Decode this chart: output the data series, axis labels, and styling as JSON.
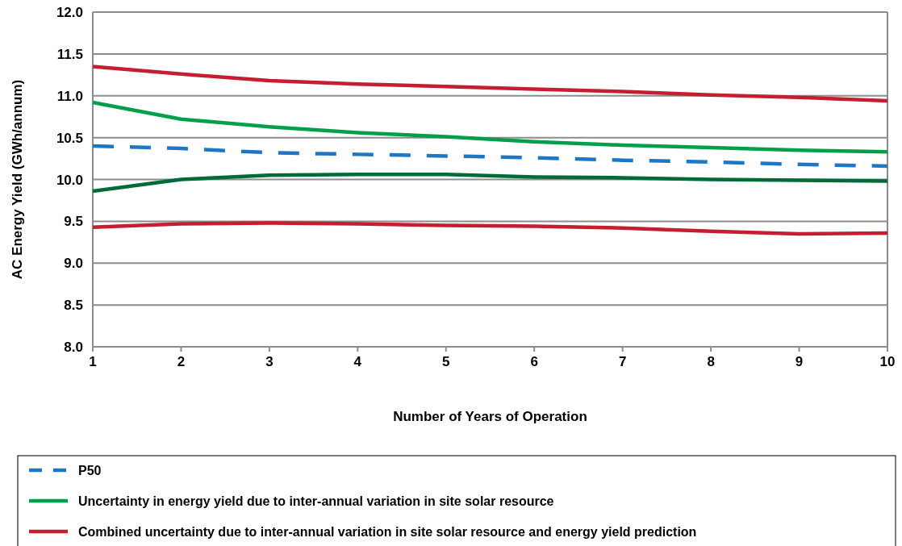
{
  "chart_data": {
    "type": "line",
    "xlabel": "Number of Years of Operation",
    "ylabel": "AC Energy Yield (GWh/annum)",
    "x": [
      1,
      2,
      3,
      4,
      5,
      6,
      7,
      8,
      9,
      10
    ],
    "xlim": [
      1,
      10
    ],
    "xticks": [
      1,
      2,
      3,
      4,
      5,
      6,
      7,
      8,
      9,
      10
    ],
    "ylim": [
      8.0,
      12.0
    ],
    "yticks": [
      {
        "value": 8,
        "label": "8.0"
      },
      {
        "value": 8.5,
        "label": "8.5"
      },
      {
        "value": 9,
        "label": "9.0"
      },
      {
        "value": 9.5,
        "label": "9.5"
      },
      {
        "value": 10,
        "label": "10.0"
      },
      {
        "value": 10.5,
        "label": "10.5"
      },
      {
        "value": 11,
        "label": "11.0"
      },
      {
        "value": 11.5,
        "label": "11.5"
      },
      {
        "value": 12,
        "label": "12.0"
      }
    ],
    "grid": "y",
    "legend": "bottom",
    "series": [
      {
        "name": "P50",
        "color": "#1f77c4",
        "line_style": "dashed",
        "values": [
          10.4,
          10.37,
          10.32,
          10.3,
          10.28,
          10.26,
          10.23,
          10.21,
          10.18,
          10.16
        ]
      },
      {
        "name": "Uncertainty in energy yield due to inter-annual variation in site solar resource",
        "color": "#00a04a",
        "line_style": "solid",
        "values": [
          10.92,
          10.72,
          10.63,
          10.56,
          10.51,
          10.45,
          10.41,
          10.38,
          10.35,
          10.33
        ]
      },
      {
        "color": "#006a38",
        "line_style": "solid",
        "values": [
          9.86,
          10.0,
          10.05,
          10.06,
          10.06,
          10.03,
          10.02,
          10.0,
          9.99,
          9.98
        ]
      },
      {
        "name": "Combined uncertainty due to inter-annual variation in site solar resource and energy yield prediction",
        "color": "#c41e30",
        "line_style": "solid",
        "values": [
          11.35,
          11.26,
          11.18,
          11.14,
          11.11,
          11.08,
          11.05,
          11.01,
          10.98,
          10.94
        ]
      },
      {
        "color": "#c41e30",
        "line_style": "solid",
        "values": [
          9.43,
          9.47,
          9.48,
          9.47,
          9.45,
          9.44,
          9.42,
          9.38,
          9.35,
          9.36
        ]
      }
    ]
  }
}
